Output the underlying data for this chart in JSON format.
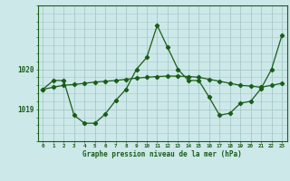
{
  "title": "Graphe pression niveau de la mer (hPa)",
  "bg_color": "#cce8e8",
  "grid_color": "#a8c8c8",
  "line_color": "#1a5c1a",
  "xlim": [
    -0.5,
    23.5
  ],
  "ylim": [
    1018.2,
    1021.6
  ],
  "yticks": [
    1019,
    1020
  ],
  "xticks": [
    0,
    1,
    2,
    3,
    4,
    5,
    6,
    7,
    8,
    9,
    10,
    11,
    12,
    13,
    14,
    15,
    16,
    17,
    18,
    19,
    20,
    21,
    22,
    23
  ],
  "series1_x": [
    0,
    1,
    2,
    3,
    4,
    5,
    6,
    7,
    8,
    9,
    10,
    11,
    12,
    13,
    14,
    15,
    16,
    17,
    18,
    19,
    20,
    21,
    22,
    23
  ],
  "series1_y": [
    1019.5,
    1019.55,
    1019.6,
    1019.62,
    1019.65,
    1019.68,
    1019.7,
    1019.72,
    1019.75,
    1019.78,
    1019.8,
    1019.82,
    1019.83,
    1019.83,
    1019.82,
    1019.8,
    1019.75,
    1019.7,
    1019.65,
    1019.6,
    1019.58,
    1019.55,
    1019.6,
    1019.65
  ],
  "series2_x": [
    0,
    1,
    2,
    3,
    4,
    5,
    6,
    7,
    8,
    9,
    10,
    11,
    12,
    13,
    14,
    15,
    16,
    17,
    18,
    19,
    20,
    21,
    22,
    23
  ],
  "series2_y": [
    1019.5,
    1019.72,
    1019.72,
    1018.85,
    1018.65,
    1018.65,
    1018.88,
    1019.22,
    1019.5,
    1020.0,
    1020.3,
    1021.1,
    1020.55,
    1020.0,
    1019.72,
    1019.72,
    1019.3,
    1018.85,
    1018.9,
    1019.15,
    1019.2,
    1019.52,
    1020.0,
    1020.85
  ]
}
